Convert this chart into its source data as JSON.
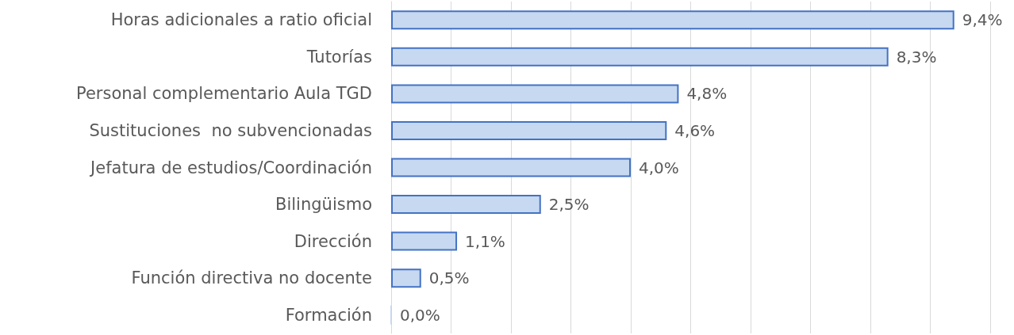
{
  "chart_data": {
    "type": "bar",
    "orientation": "horizontal",
    "categories": [
      "Horas adicionales a ratio oficial",
      "Tutorías",
      "Personal complementario Aula TGD",
      "Sustituciones  no subvencionadas",
      "Jefatura de estudios/Coordinación",
      "Bilingüismo",
      "Dirección",
      "Función directiva no docente",
      "Formación"
    ],
    "values": [
      9.4,
      8.3,
      4.8,
      4.6,
      4.0,
      2.5,
      1.1,
      0.5,
      0.0
    ],
    "value_labels": [
      "9,4%",
      "8,3%",
      "4,8%",
      "4,6%",
      "4,0%",
      "2,5%",
      "1,1%",
      "0,5%",
      "0,0%"
    ],
    "color": "#c6d9f1",
    "xlim": [
      0,
      10
    ],
    "xticks": [
      0,
      1,
      2,
      3,
      4,
      5,
      6,
      7,
      8,
      9,
      10
    ],
    "tick_labels": "y",
    "grid": "x"
  }
}
